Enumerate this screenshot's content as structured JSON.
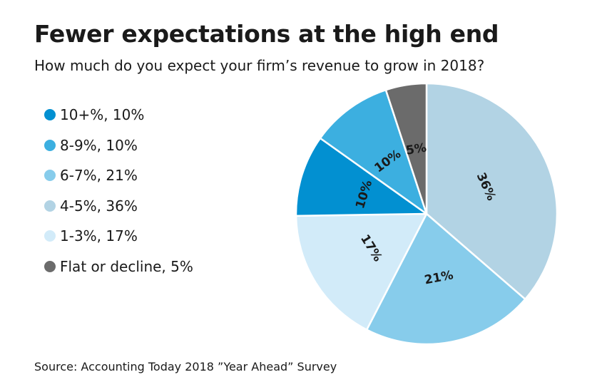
{
  "chart_data": {
    "type": "pie",
    "title": "Fewer expectations at the high end",
    "subtitle": "How much do you expect your firm’s revenue to grow in 2018?",
    "source": "Source: Accounting Today 2018 ”Year Ahead” Survey",
    "legend_position": "left",
    "slices": [
      {
        "label": "4-5%",
        "value": 36,
        "display": "36%",
        "legend": "4-5%, 36%",
        "color": "#b2d3e4"
      },
      {
        "label": "6-7%",
        "value": 21,
        "display": "21%",
        "legend": "6-7%, 21%",
        "color": "#87cceb"
      },
      {
        "label": "1-3%",
        "value": 17,
        "display": "17%",
        "legend": "1-3%, 17%",
        "color": "#d2ebf9"
      },
      {
        "label": "10+%",
        "value": 10,
        "display": "10%",
        "legend": "10+%, 10%",
        "color": "#0290d1"
      },
      {
        "label": "8-9%",
        "value": 10,
        "display": "10%",
        "legend": "8-9%, 10%",
        "color": "#3cafe0"
      },
      {
        "label": "Flat or decline",
        "value": 5,
        "display": "5%",
        "legend": "Flat or decline, 5%",
        "color": "#6b6b6b"
      }
    ],
    "legend_order": [
      3,
      4,
      1,
      0,
      2,
      5
    ]
  }
}
